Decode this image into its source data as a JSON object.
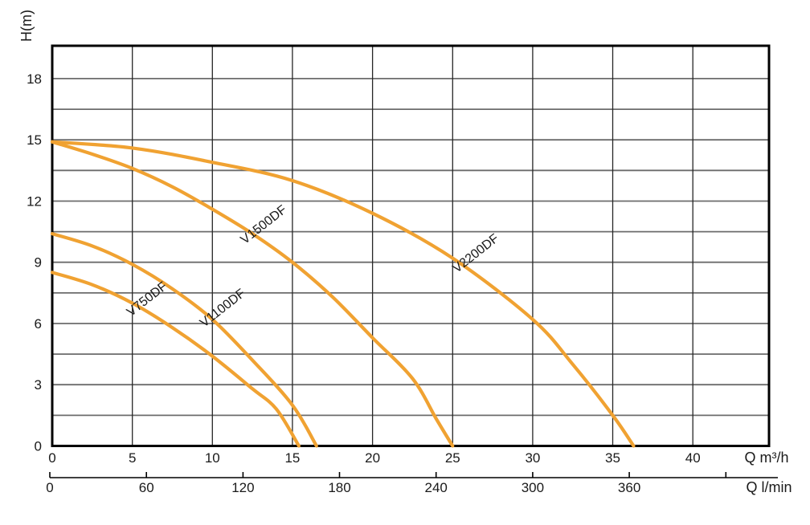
{
  "chart_data": {
    "type": "line",
    "title": "",
    "ylabel": "H(m)",
    "xlabel": "Q m³/h",
    "x2label": "Q l/min",
    "grid": true,
    "legend_position": "labels-on-curves",
    "y_axis": {
      "ticks": [
        0,
        3,
        6,
        9,
        12,
        15,
        18
      ],
      "grid_step": 1.5,
      "min": 0,
      "max": 19.6
    },
    "x_axis": {
      "ticks": [
        0,
        5,
        10,
        15,
        20,
        25,
        30,
        35,
        40
      ],
      "grid_step": 5,
      "min": 0,
      "max": 44.8
    },
    "x2_axis": {
      "ticks": [
        0,
        60,
        120,
        180,
        240,
        300,
        360
      ],
      "tick_step": 60,
      "extra_unlabeled_tick": 420
    },
    "series": [
      {
        "name": "V750DF",
        "points": [
          [
            0,
            8.5
          ],
          [
            2.5,
            7.9
          ],
          [
            5,
            7.0
          ],
          [
            7.5,
            5.8
          ],
          [
            10,
            4.4
          ],
          [
            12.5,
            2.8
          ],
          [
            14,
            1.8
          ],
          [
            15.4,
            0
          ]
        ],
        "label": {
          "q": 6.07,
          "h": 7.04,
          "rot": -38
        }
      },
      {
        "name": "V1100DF",
        "points": [
          [
            0,
            10.4
          ],
          [
            2.5,
            9.8
          ],
          [
            5,
            8.9
          ],
          [
            7.5,
            7.7
          ],
          [
            10,
            6.2
          ],
          [
            12.5,
            4.2
          ],
          [
            15,
            2.0
          ],
          [
            16.5,
            0
          ]
        ],
        "label": {
          "q": 10.79,
          "h": 6.6,
          "rot": -38
        }
      },
      {
        "name": "V1500DF",
        "points": [
          [
            0,
            14.9
          ],
          [
            2.5,
            14.3
          ],
          [
            5,
            13.6
          ],
          [
            7.5,
            12.7
          ],
          [
            10,
            11.6
          ],
          [
            12.5,
            10.4
          ],
          [
            15,
            9.0
          ],
          [
            17.5,
            7.3
          ],
          [
            20,
            5.3
          ],
          [
            22.5,
            3.3
          ],
          [
            24,
            1.3
          ],
          [
            25,
            0
          ]
        ],
        "label": {
          "q": 13.35,
          "h": 10.69,
          "rot": -38
        }
      },
      {
        "name": "V2200DF",
        "points": [
          [
            0,
            14.9
          ],
          [
            5,
            14.6
          ],
          [
            10,
            13.9
          ],
          [
            15,
            13.0
          ],
          [
            20,
            11.4
          ],
          [
            25,
            9.2
          ],
          [
            30,
            6.2
          ],
          [
            32.5,
            4.0
          ],
          [
            35,
            1.5
          ],
          [
            36.3,
            0
          ]
        ],
        "label": {
          "q": 26.6,
          "h": 9.28,
          "rot": -38
        }
      }
    ],
    "colors": {
      "curve": "#F0A232",
      "h_grid": "#6C6C6C",
      "v_grid": "#262626",
      "frame": "#000000",
      "text": "#1A1A1A"
    }
  }
}
